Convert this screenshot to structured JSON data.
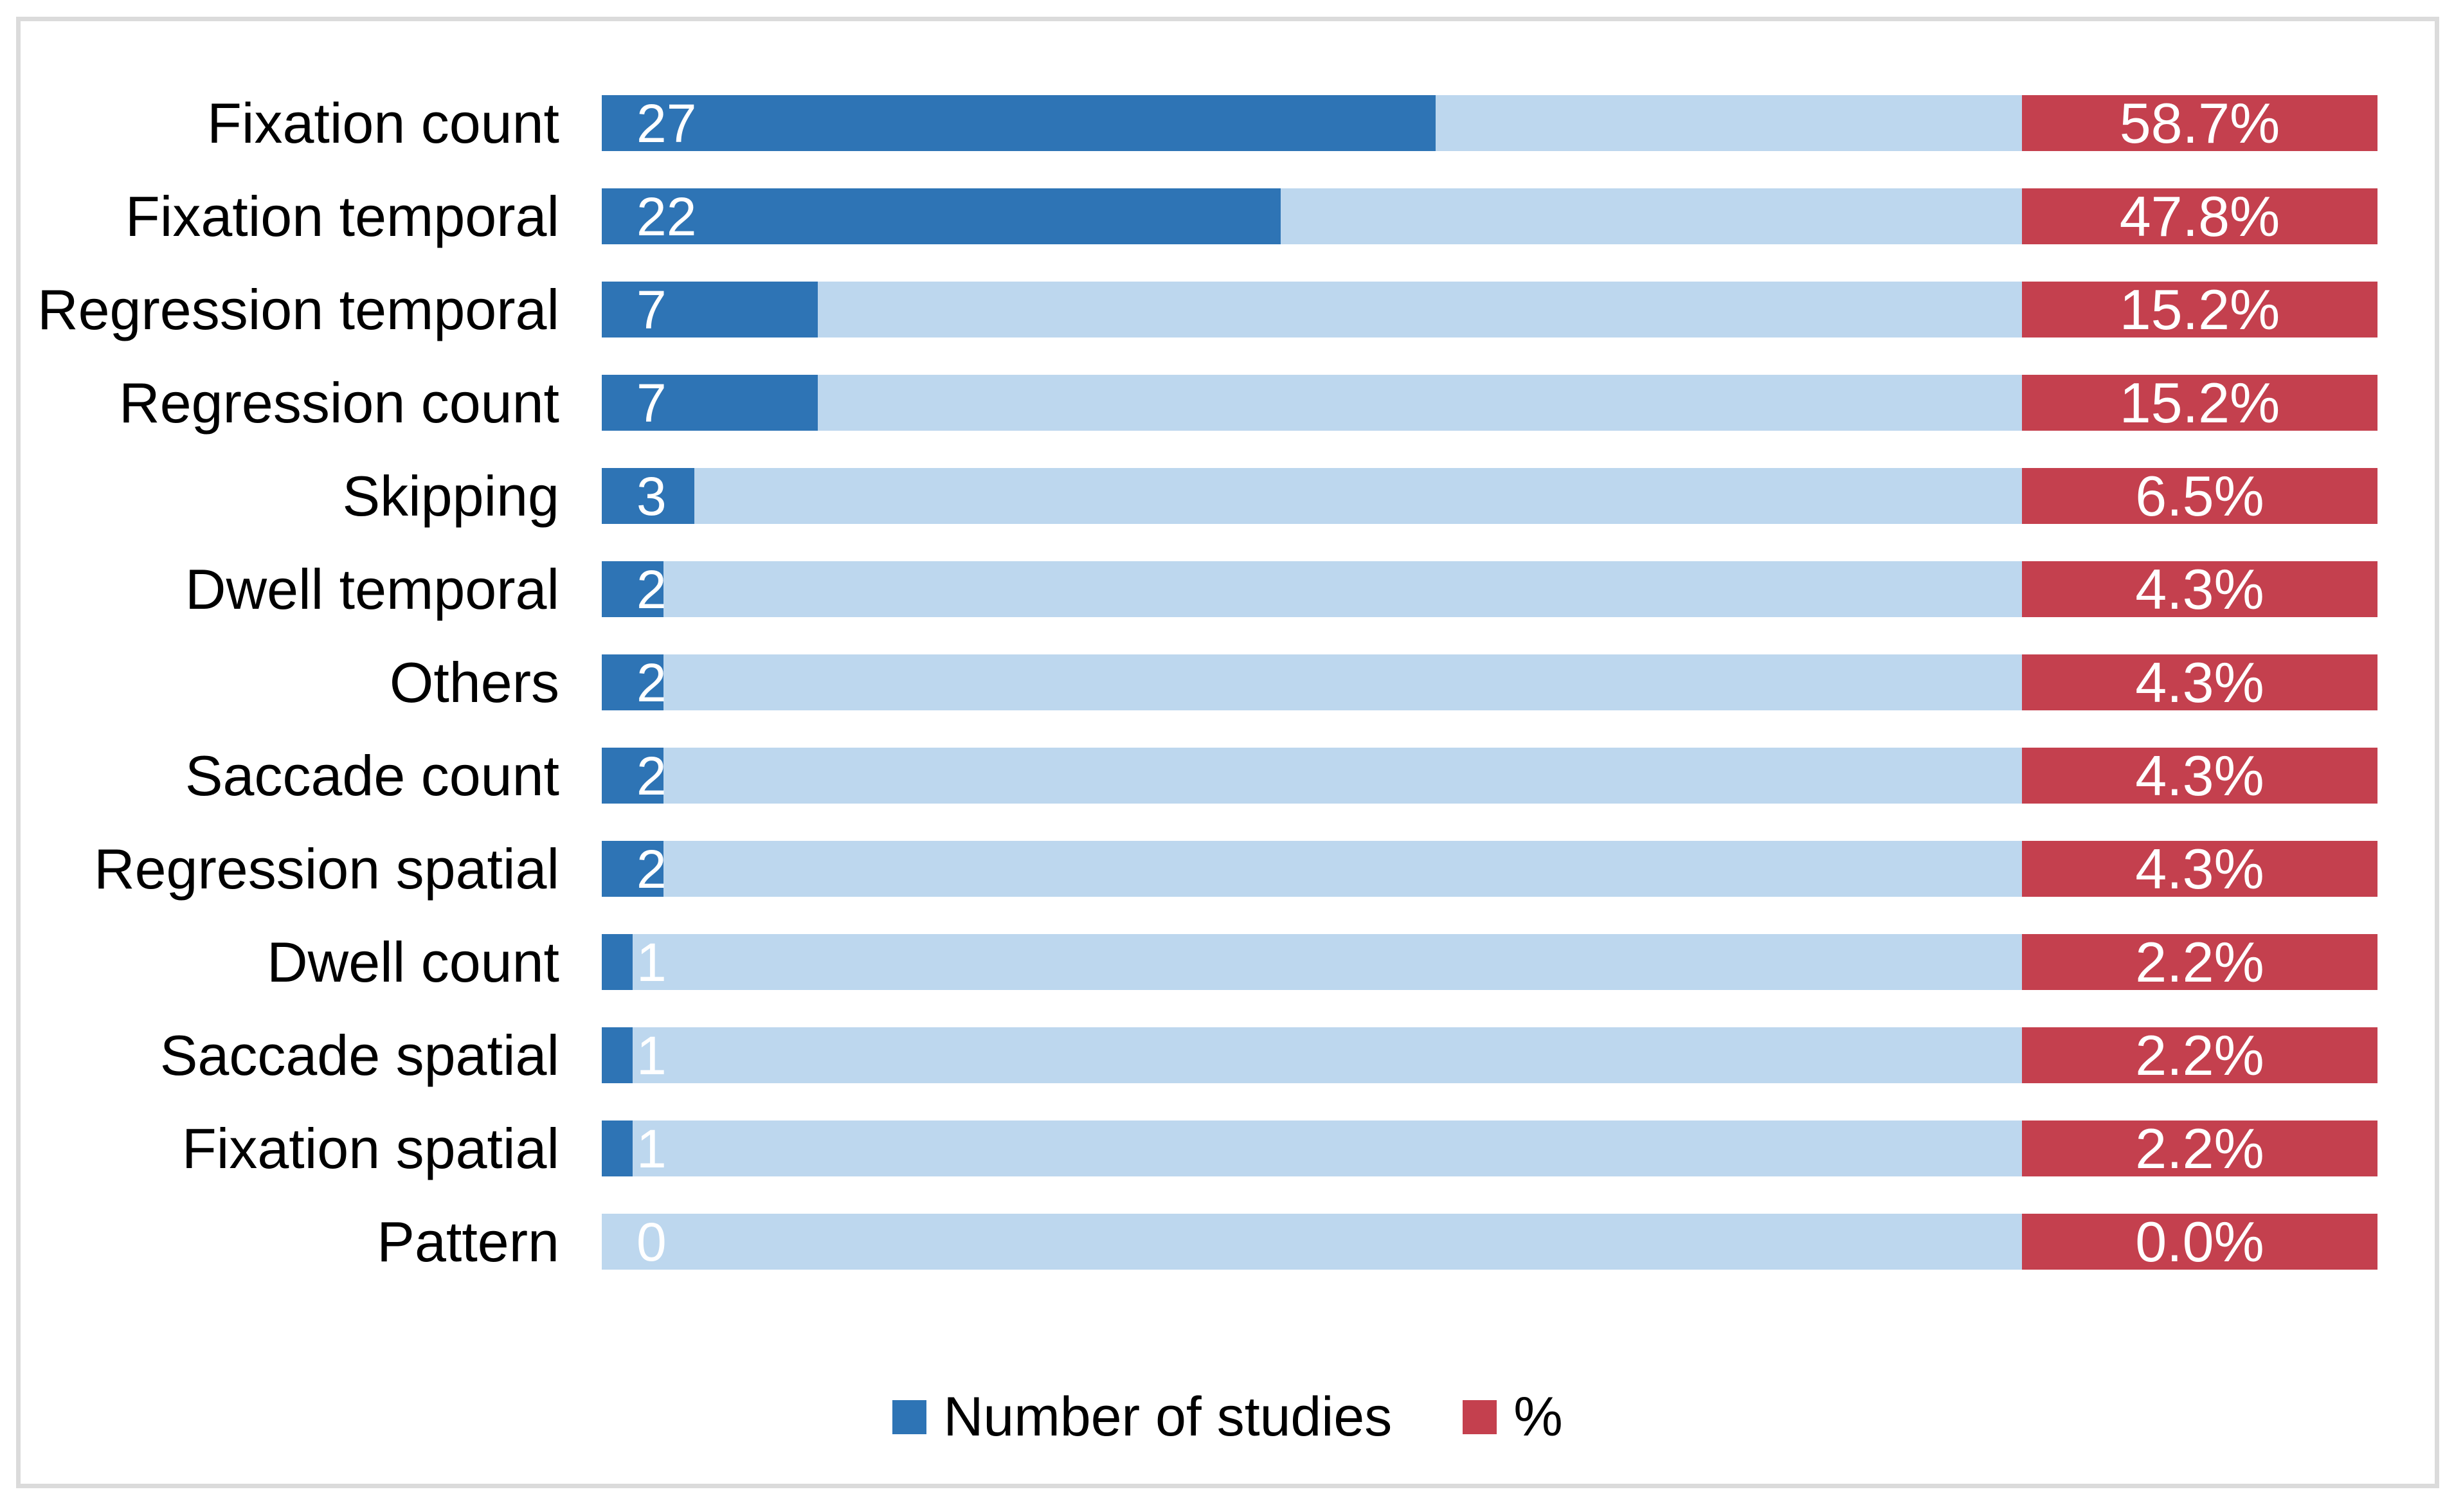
{
  "figure": {
    "border_color": "#DBDBDB",
    "background": "#FFFFFF"
  },
  "chart_data": {
    "type": "bar",
    "orientation": "horizontal",
    "stacked": true,
    "title": "",
    "xlabel": "",
    "ylabel": "",
    "grid": false,
    "legend_position": "bottom",
    "count_axis_max": 46,
    "remainder_color": "#BDD7EE",
    "value_label_color": "#FFFFFF",
    "categories": [
      "Fixation count",
      "Fixation temporal",
      "Regression temporal",
      "Regression count",
      "Skipping",
      "Dwell temporal",
      "Others",
      "Saccade count",
      "Regression spatial",
      "Dwell count",
      "Saccade spatial",
      "Fixation spatial",
      "Pattern"
    ],
    "series": [
      {
        "name": "Number of studies",
        "color": "#2E74B5",
        "values": [
          27,
          22,
          7,
          7,
          3,
          2,
          2,
          2,
          2,
          1,
          1,
          1,
          0
        ]
      },
      {
        "name": "%",
        "color": "#C4404E",
        "labels": [
          "58.7%",
          "47.8%",
          "15.2%",
          "15.2%",
          "6.5%",
          "4.3%",
          "4.3%",
          "4.3%",
          "4.3%",
          "2.2%",
          "2.2%",
          "2.2%",
          "0.0%"
        ]
      }
    ]
  },
  "legend": {
    "studies_label": "Number of studies",
    "percent_label": "%"
  }
}
